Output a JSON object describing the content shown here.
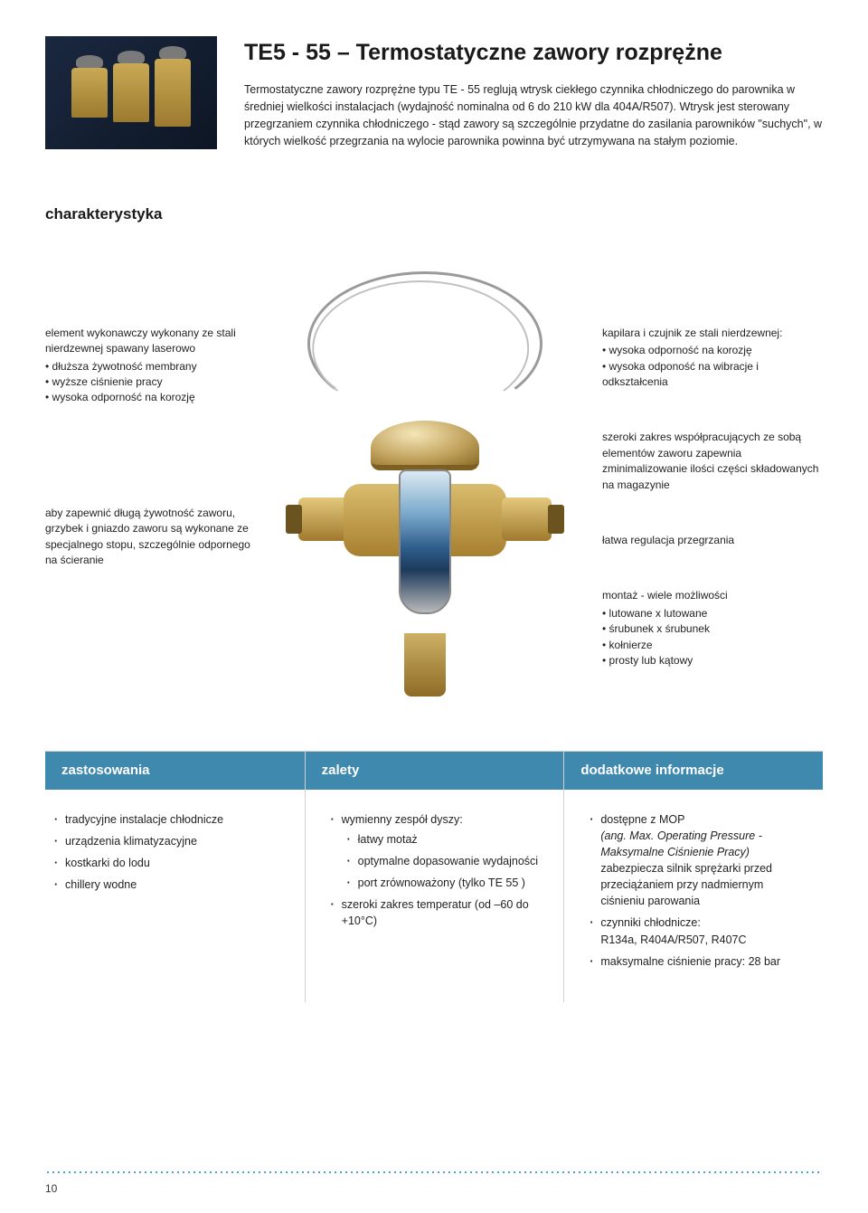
{
  "header": {
    "title": "TE5 - 55 – Termostatyczne zawory rozprężne",
    "intro": "Termostatyczne zawory rozprężne typu TE - 55  reglują wtrysk ciekłego czynnika chłodniczego do parownika w średniej wielkości instalacjach (wydajność nominalna od 6 do 210 kW dla 404A/R507). Wtrysk jest sterowany przegrzaniem czynnika chłodniczego - stąd zawory są szczególnie przydatne do zasilania parowników \"suchych\", w których wielkość przegrzania na wylocie parownika powinna być utrzymywana na stałym poziomie."
  },
  "section_char": "charakterystyka",
  "left": {
    "a_lead": "element wykonawczy wykonany ze stali nierdzewnej spawany laserowo",
    "a_items": [
      "dłuższa żywotność membrany",
      "wyższe ciśnienie pracy",
      "wysoka odporność na korozję"
    ],
    "b_text": "aby zapewnić długą żywotność zaworu, grzybek i gniazdo zaworu są wykonane ze specjalnego stopu, szczególnie odpornego na ścieranie"
  },
  "right": {
    "a_lead": "kapilara i czujnik ze stali nierdzewnej:",
    "a_items": [
      "wysoka odporność na korozję",
      "wysoka odponość na wibracje i odkształcenia"
    ],
    "b_text": "szeroki zakres współpracujących ze sobą elementów zaworu zapewnia zminimalizowanie ilości części składowanych na magazynie",
    "c_text": "łatwa regulacja przegrzania",
    "d_lead": "montaż - wiele możliwości",
    "d_items": [
      "lutowane x lutowane",
      "śrubunek x śrubunek",
      "kołnierze",
      "prosty lub kątowy"
    ]
  },
  "cols": {
    "app_head": "zastosowania",
    "app_items": [
      "tradycyjne instalacje chłodnicze",
      "urządzenia klimatyzacyjne",
      "kostkarki do lodu",
      "chillery wodne"
    ],
    "adv_head": "zalety",
    "adv_item1": "wymienny zespół dyszy:",
    "adv_sub": [
      "łatwy motaż",
      "optymalne dopasowanie wydajności",
      "port zrównoważony (tylko TE 55 )"
    ],
    "adv_item2": "szeroki zakres temperatur (od –60 do +10°C)",
    "info_head": "dodatkowe informacje",
    "info_i1a": "dostępne z MOP",
    "info_i1b": "(ang. Max. Operating Pressure - Maksymalne Ciśnienie Pracy)",
    "info_i1c": "zabezpiecza silnik sprężarki przed przeciążaniem przy nadmiernym ciśnieniu parowania",
    "info_i2a": "czynniki chłodnicze:",
    "info_i2b": "R134a, R404A/R507, R407C",
    "info_i3": "maksymalne ciśnienie pracy: 28 bar"
  },
  "page_number": "10"
}
